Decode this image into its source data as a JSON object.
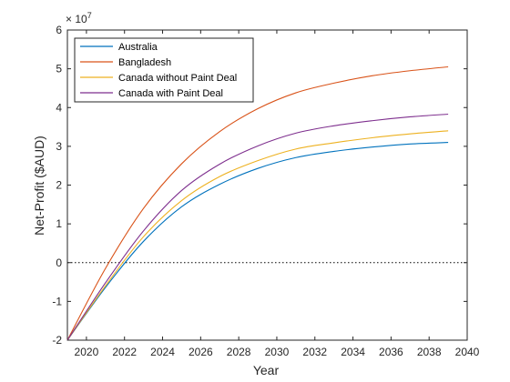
{
  "chart_data": {
    "type": "line",
    "xlabel": "Year",
    "ylabel": "Net-Profit ($AUD)",
    "y_exponent_label": "× 10",
    "y_exponent_power": "7",
    "xlim": [
      2019,
      2040
    ],
    "ylim": [
      -2,
      6
    ],
    "x_ticks": [
      2020,
      2022,
      2024,
      2026,
      2028,
      2030,
      2032,
      2034,
      2036,
      2038,
      2040
    ],
    "y_ticks": [
      -2,
      -1,
      0,
      1,
      2,
      3,
      4,
      5,
      6
    ],
    "x_tick_labels": [
      "2020",
      "2022",
      "2024",
      "2026",
      "2028",
      "2030",
      "2032",
      "2034",
      "2036",
      "2038",
      "2040"
    ],
    "y_tick_labels": [
      "-2",
      "-1",
      "0",
      "1",
      "2",
      "3",
      "4",
      "5",
      "6"
    ],
    "reference_line": {
      "y": 0,
      "style": "dotted"
    },
    "legend_position": "top-left",
    "grid": false,
    "x": [
      2019,
      2021,
      2023,
      2025,
      2027,
      2029,
      2031,
      2033,
      2035,
      2037,
      2039
    ],
    "series": [
      {
        "name": "Australia",
        "color": "#0072BD",
        "values": [
          -2.0,
          -0.64,
          0.55,
          1.44,
          2.02,
          2.43,
          2.71,
          2.87,
          2.98,
          3.06,
          3.1
        ]
      },
      {
        "name": "Bangladesh",
        "color": "#D95319",
        "values": [
          -2.0,
          -0.15,
          1.4,
          2.55,
          3.38,
          3.97,
          4.38,
          4.63,
          4.82,
          4.95,
          5.05
        ]
      },
      {
        "name": "Canada without Paint Deal",
        "color": "#EDB120",
        "values": [
          -2.0,
          -0.6,
          0.67,
          1.6,
          2.22,
          2.63,
          2.93,
          3.09,
          3.22,
          3.32,
          3.4
        ]
      },
      {
        "name": "Canada with Paint Deal",
        "color": "#7E2F8E",
        "values": [
          -2.0,
          -0.52,
          0.82,
          1.86,
          2.54,
          3.01,
          3.34,
          3.53,
          3.66,
          3.76,
          3.83
        ]
      }
    ]
  }
}
